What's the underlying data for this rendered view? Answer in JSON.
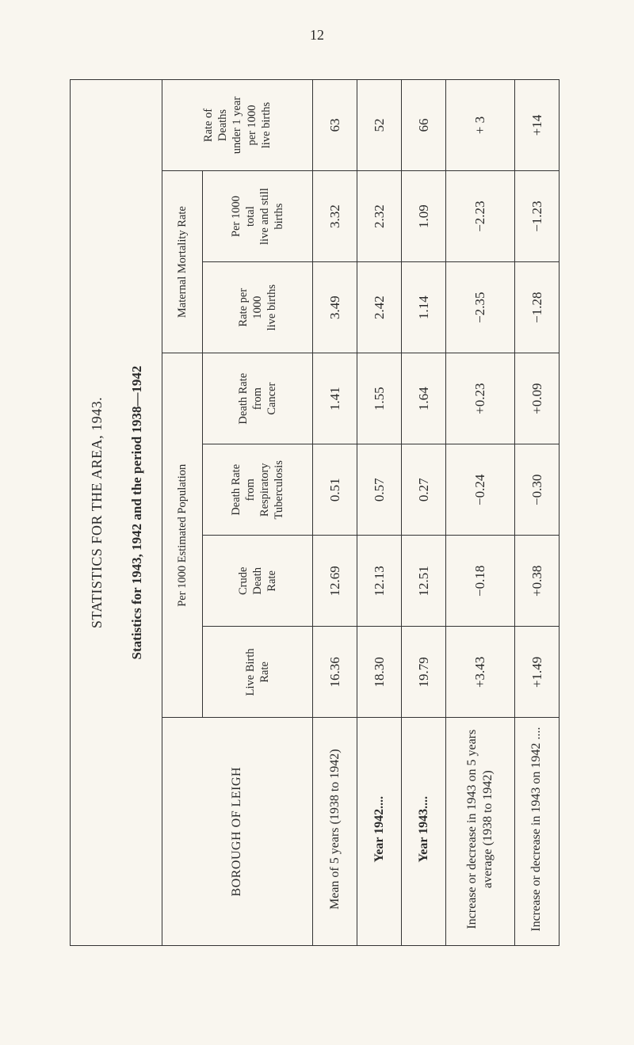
{
  "page_number_top": "12",
  "title_main": "STATISTICS FOR THE AREA, 1943.",
  "title_sub": "Statistics for 1943, 1942 and the period 1938—1942",
  "borough_label": "BOROUGH OF LEIGH",
  "group_per1000": "Per 1000 Estimated Population",
  "group_maternal": "Maternal Mortality Rate",
  "headers": {
    "live_birth_rate": "Live Birth\nRate",
    "crude_death_rate": "Crude\nDeath\nRate",
    "death_rate_resp": "Death Rate\nfrom\nRespiratory\nTuberculosis",
    "death_rate_cancer": "Death Rate\nfrom\nCancer",
    "rate_per_1000_lb": "Rate per\n1000\nlive births",
    "per_1000_total": "Per 1000\ntotal\nlive and still\nbirths",
    "rate_under1": "Rate of\nDeaths\nunder 1 year\nper 1000\nlive births"
  },
  "rows": [
    {
      "label": "Mean of 5 years (1938 to 1942)",
      "live_birth": "16.36",
      "crude_death": "12.69",
      "resp_tb": "0.51",
      "cancer": "1.41",
      "mat_per_lb": "3.49",
      "mat_per_total": "3.32",
      "under1": "63"
    },
    {
      "label": "Year 1942....",
      "live_birth": "18.30",
      "crude_death": "12.13",
      "resp_tb": "0.57",
      "cancer": "1.55",
      "mat_per_lb": "2.42",
      "mat_per_total": "2.32",
      "under1": "52"
    },
    {
      "label": "Year 1943....",
      "live_birth": "19.79",
      "crude_death": "12.51",
      "resp_tb": "0.27",
      "cancer": "1.64",
      "mat_per_lb": "1.14",
      "mat_per_total": "1.09",
      "under1": "66"
    },
    {
      "label": "Increase or decrease in 1943 on 5 years average (1938 to 1942)",
      "live_birth": "+3.43",
      "crude_death": "−0.18",
      "resp_tb": "−0.24",
      "cancer": "+0.23",
      "mat_per_lb": "−2.35",
      "mat_per_total": "−2.23",
      "under1": "+ 3"
    },
    {
      "label": "Increase or decrease in 1943 on 1942 ....",
      "live_birth": "+1.49",
      "crude_death": "+0.38",
      "resp_tb": "−0.30",
      "cancer": "+0.09",
      "mat_per_lb": "−1.28",
      "mat_per_total": "−1.23",
      "under1": "+14"
    }
  ]
}
